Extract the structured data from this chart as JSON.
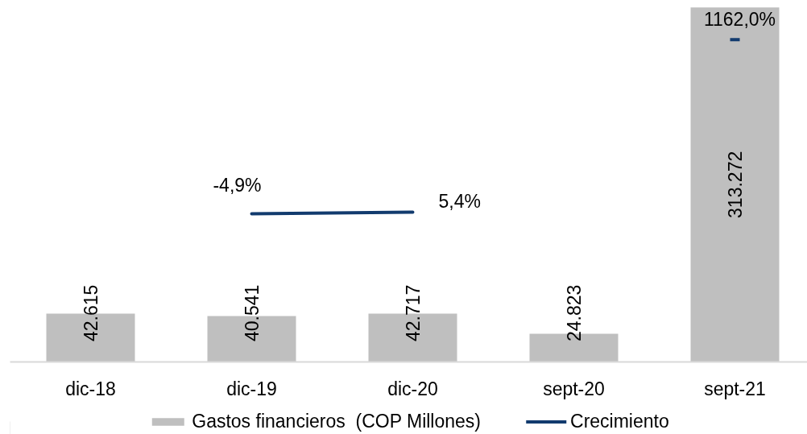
{
  "chart_data": {
    "type": "bar",
    "categories": [
      "dic-18",
      "dic-19",
      "dic-20",
      "sept-20",
      "sept-21"
    ],
    "series": [
      {
        "name": "Gastos financieros  (COP Millones)",
        "color": "#bfbfbf",
        "values": [
          42615,
          40541,
          42717,
          24823,
          313272
        ],
        "value_labels": [
          "42.615",
          "40.541",
          "42.717",
          "24.823",
          "313.272"
        ]
      },
      {
        "name": "Crecimiento",
        "type": "line",
        "axis": "y2",
        "color": "#123b6e",
        "values": [
          null,
          -4.9,
          5.4,
          null,
          1162.0
        ],
        "value_labels": [
          null,
          "-4,9%",
          "5,4%",
          null,
          "1162,0%"
        ]
      }
    ],
    "tick_labels": "x",
    "legend": "bottom",
    "grid": false
  }
}
